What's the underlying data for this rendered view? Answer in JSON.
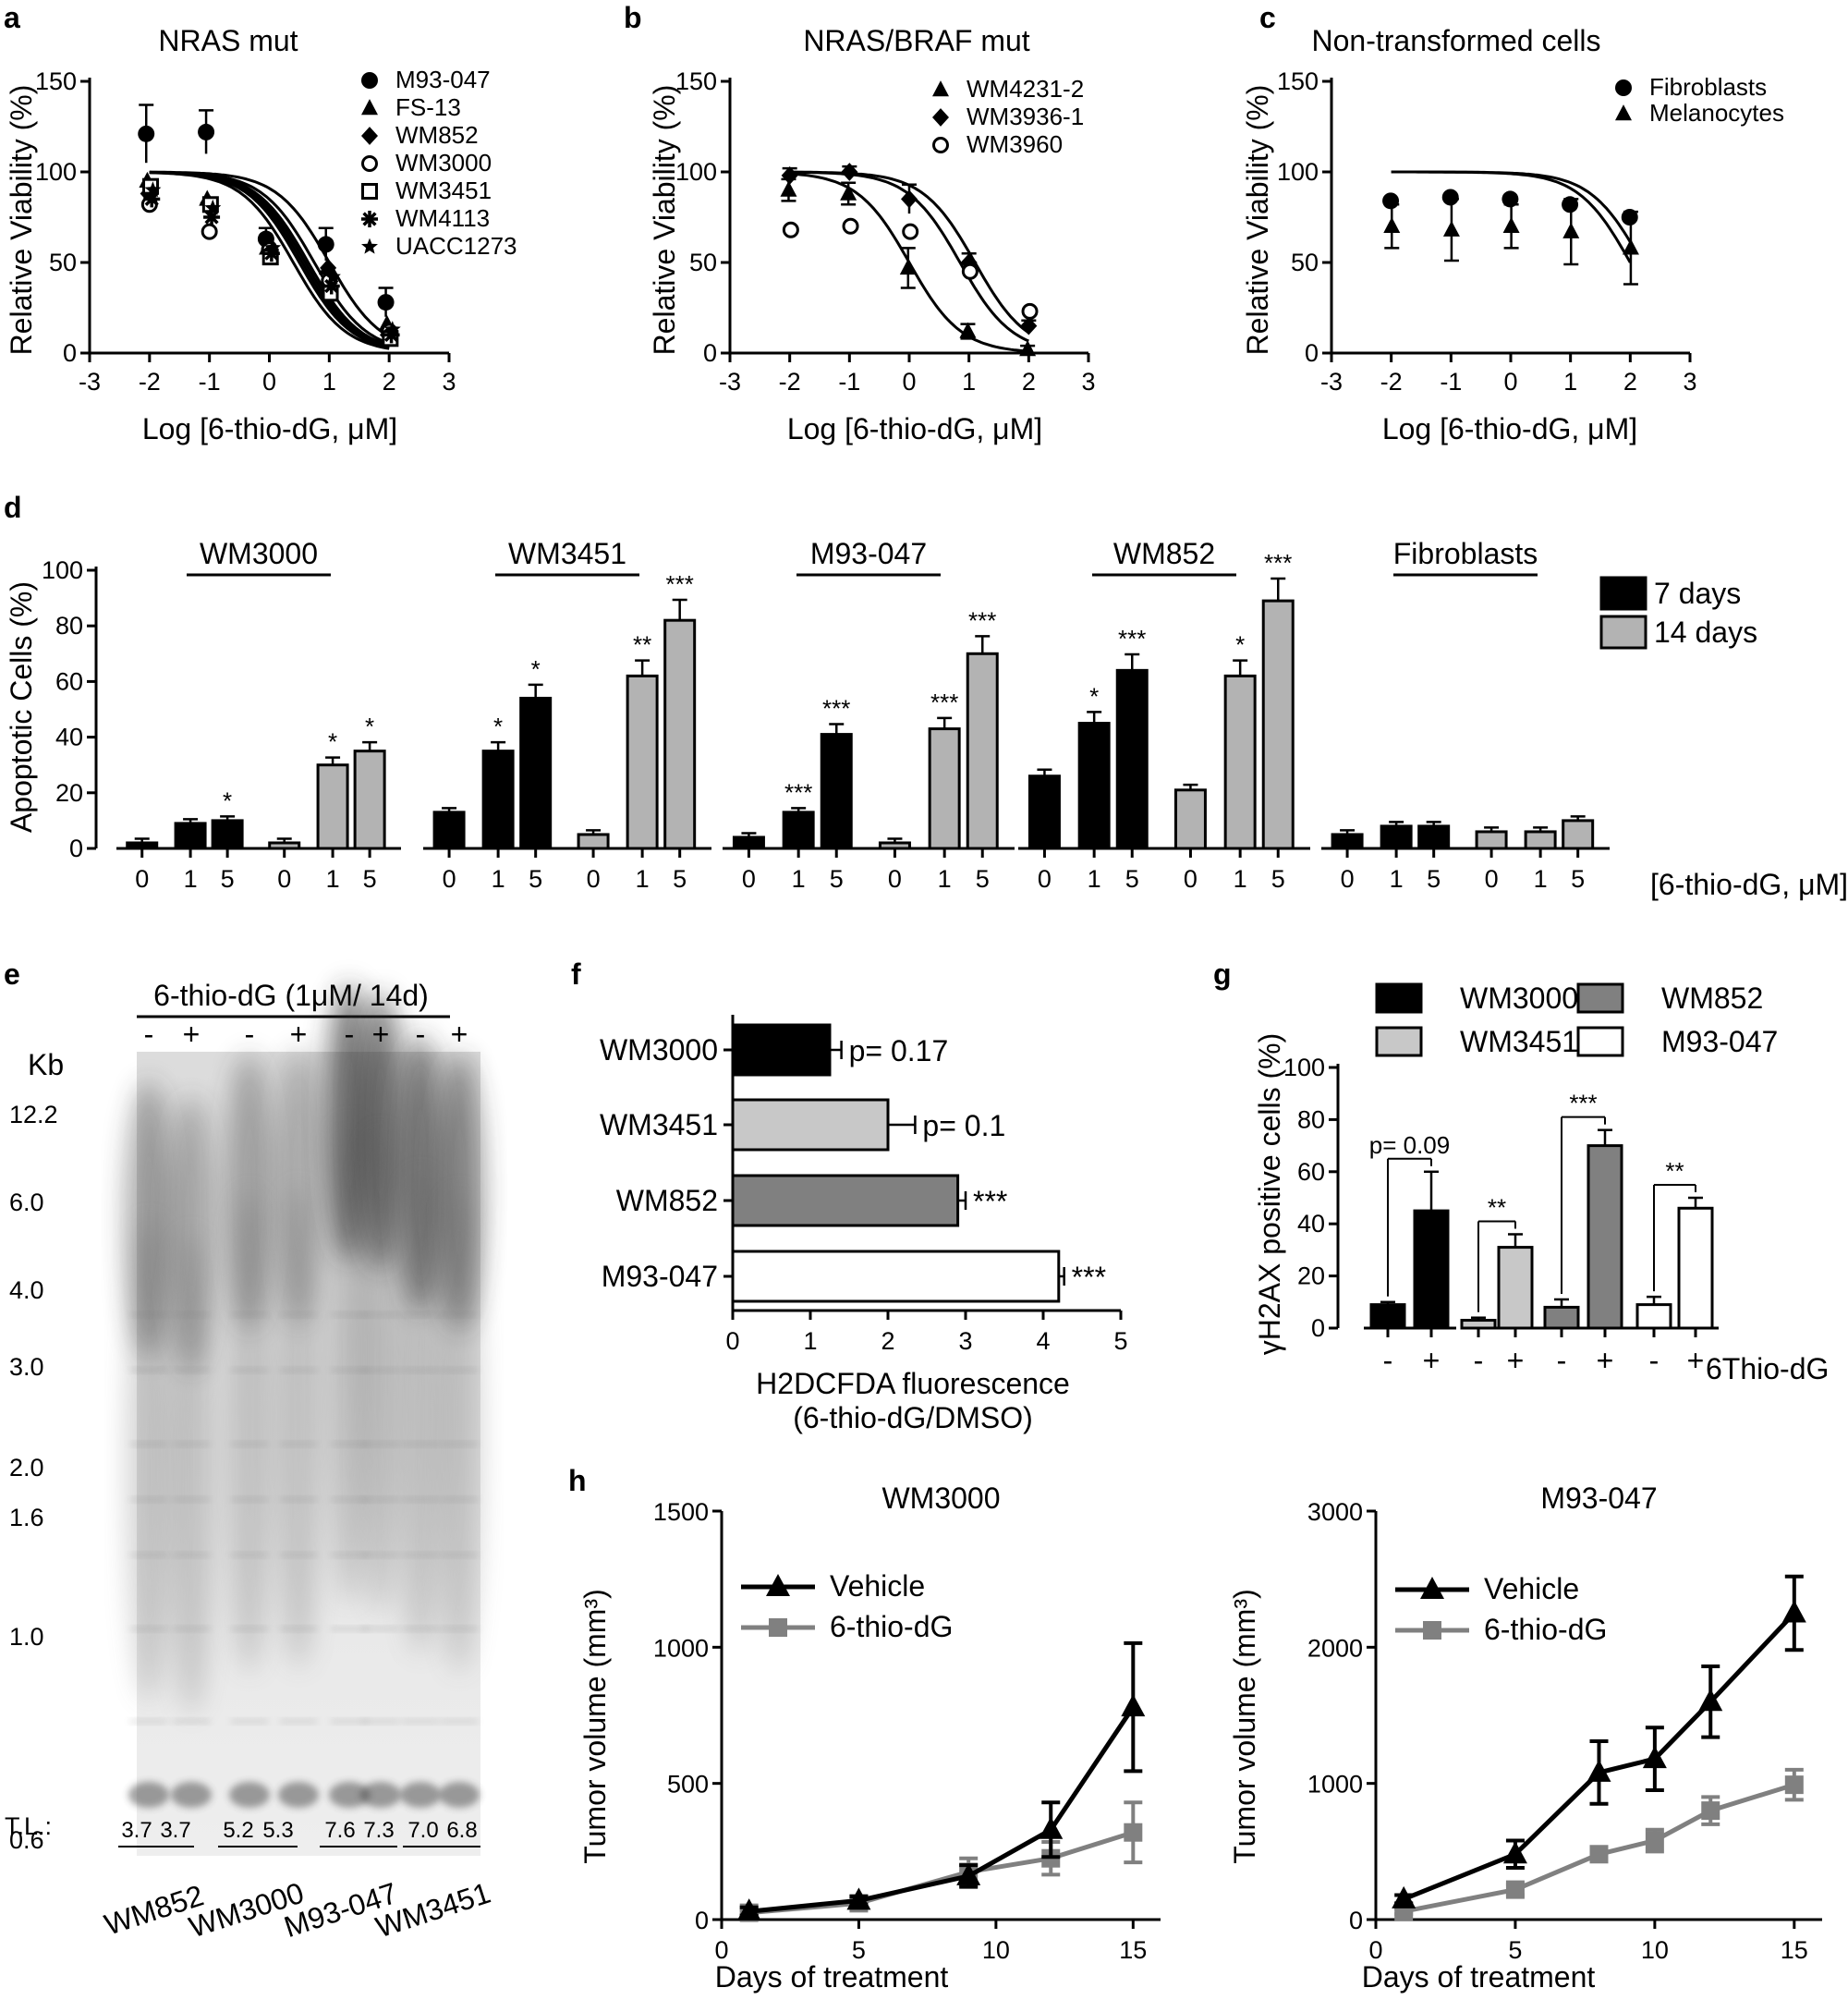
{
  "panels": {
    "a": {
      "label": "a",
      "title": "NRAS mut",
      "ylabel": "Relative Viability (%)",
      "xlabel": "Log [6-thio-dG, μM]"
    },
    "b": {
      "label": "b",
      "title": "NRAS/BRAF mut",
      "ylabel": "Relative Viability (%)",
      "xlabel": "Log [6-thio-dG, μM]"
    },
    "c": {
      "label": "c",
      "title": "Non-transformed cells",
      "ylabel": "Relative Viability (%)",
      "xlabel": "Log [6-thio-dG, μM]"
    },
    "d": {
      "label": "d",
      "ylabel": "Apoptotic Cells (%)",
      "xlabel": "[6-thio-dG, μM]"
    },
    "e": {
      "label": "e",
      "header": "6-thio-dG (1μM/ 14d)",
      "kb": "Kb",
      "tl": "T.L.:"
    },
    "f": {
      "label": "f",
      "xlabel1": "H2DCFDA fluorescence",
      "xlabel2": "(6-thio-dG/DMSO)"
    },
    "g": {
      "label": "g",
      "ylabel": "γH2AX positive cells (%)",
      "xlabel": "6Thio-dG"
    },
    "h": {
      "label": "h",
      "xlabel": "Days of treatment",
      "ylabel": "Tumor volume (mm³)"
    }
  },
  "chart_data": [
    {
      "id": "a",
      "type": "scatter",
      "title": "NRAS mut",
      "xlabel": "Log [6-thio-dG, μM]",
      "ylabel": "Relative Viability (%)",
      "xlim": [
        -3,
        3
      ],
      "ylim": [
        0,
        150
      ],
      "xticks": [
        -3,
        -2,
        -1,
        0,
        1,
        2,
        3
      ],
      "yticks": [
        0,
        50,
        100,
        150
      ],
      "x": [
        -2,
        -1,
        0,
        1,
        2
      ],
      "series": [
        {
          "name": "M93-047",
          "marker": "filled-circle",
          "values": [
            121,
            122,
            63,
            60,
            28
          ],
          "ic50": 1.0
        },
        {
          "name": "FS-13",
          "marker": "filled-triangle",
          "values": [
            95,
            85,
            58,
            47,
            16
          ],
          "ic50": 0.75
        },
        {
          "name": "WM852",
          "marker": "filled-diamond",
          "values": [
            88,
            83,
            60,
            47,
            10
          ],
          "ic50": 0.6
        },
        {
          "name": "WM3000",
          "marker": "open-circle",
          "values": [
            82,
            67,
            57,
            40,
            12
          ],
          "ic50": 0.5
        },
        {
          "name": "WM3451",
          "marker": "open-square",
          "values": [
            92,
            82,
            53,
            33,
            8
          ],
          "ic50": 0.4
        },
        {
          "name": "WM4113",
          "marker": "asterisk",
          "values": [
            85,
            75,
            55,
            37,
            10
          ],
          "ic50": 0.55
        },
        {
          "name": "UACC1273",
          "marker": "star",
          "values": [
            90,
            80,
            58,
            42,
            13
          ],
          "ic50": 0.65
        }
      ]
    },
    {
      "id": "b",
      "type": "scatter",
      "title": "NRAS/BRAF mut",
      "xlabel": "Log [6-thio-dG, μM]",
      "ylabel": "Relative Viability (%)",
      "xlim": [
        -3,
        3
      ],
      "ylim": [
        0,
        150
      ],
      "xticks": [
        -3,
        -2,
        -1,
        0,
        1,
        2,
        3
      ],
      "yticks": [
        0,
        50,
        100,
        150
      ],
      "x": [
        -2,
        -1,
        0,
        1,
        2
      ],
      "series": [
        {
          "name": "WM4231-2",
          "marker": "filled-triangle",
          "values": [
            90,
            88,
            47,
            12,
            2
          ],
          "ic50": 0.0
        },
        {
          "name": "WM3936-1",
          "marker": "filled-diamond",
          "values": [
            98,
            100,
            85,
            50,
            15
          ],
          "ic50": 0.85
        },
        {
          "name": "WM3960",
          "marker": "open-circle",
          "values": [
            68,
            70,
            67,
            45,
            23
          ],
          "ic50": 1.1
        }
      ]
    },
    {
      "id": "c",
      "type": "scatter",
      "title": "Non-transformed cells",
      "xlabel": "Log [6-thio-dG, μM]",
      "ylabel": "Relative Viability (%)",
      "xlim": [
        -3,
        3
      ],
      "ylim": [
        0,
        150
      ],
      "xticks": [
        -3,
        -2,
        -1,
        0,
        1,
        2,
        3
      ],
      "yticks": [
        0,
        50,
        100,
        150
      ],
      "x": [
        -2,
        -1,
        0,
        1,
        2
      ],
      "series": [
        {
          "name": "Fibroblasts",
          "marker": "filled-circle",
          "values": [
            84,
            86,
            85,
            82,
            75
          ],
          "ic50": 2.2
        },
        {
          "name": "Melanocytes",
          "marker": "filled-triangle",
          "values": [
            70,
            68,
            70,
            67,
            58
          ],
          "ic50": 2.0
        }
      ]
    },
    {
      "id": "d",
      "type": "bar",
      "ylabel": "Apoptotic Cells (%)",
      "xlabel": "[6-thio-dG, μM]",
      "ylim": [
        0,
        100
      ],
      "yticks": [
        0,
        20,
        40,
        60,
        80,
        100
      ],
      "doses": [
        "0",
        "1",
        "5"
      ],
      "legend": [
        {
          "name": "7 days",
          "color": "#000000"
        },
        {
          "name": "14 days",
          "color": "#b3b3b3"
        }
      ],
      "groups": [
        {
          "name": "WM3000",
          "d7": [
            2,
            9,
            10
          ],
          "d7_sig": [
            "",
            "",
            "*"
          ],
          "d14": [
            2,
            30,
            35
          ],
          "d14_sig": [
            "",
            "*",
            "*"
          ]
        },
        {
          "name": "WM3451",
          "d7": [
            13,
            35,
            54
          ],
          "d7_sig": [
            "",
            "*",
            "*"
          ],
          "d14": [
            5,
            62,
            82
          ],
          "d14_sig": [
            "",
            "**",
            "***"
          ]
        },
        {
          "name": "M93-047",
          "d7": [
            4,
            13,
            41
          ],
          "d7_sig": [
            "",
            "***",
            "***"
          ],
          "d14": [
            2,
            43,
            70
          ],
          "d14_sig": [
            "",
            "***",
            "***"
          ]
        },
        {
          "name": "WM852",
          "d7": [
            26,
            45,
            64
          ],
          "d7_sig": [
            "",
            "*",
            "***"
          ],
          "d14": [
            21,
            62,
            89
          ],
          "d14_sig": [
            "",
            "*",
            "***"
          ]
        },
        {
          "name": "Fibroblasts",
          "d7": [
            5,
            8,
            8
          ],
          "d7_sig": [
            "",
            "",
            ""
          ],
          "d14": [
            6,
            6,
            10
          ],
          "d14_sig": [
            "",
            "",
            ""
          ]
        }
      ]
    },
    {
      "id": "e",
      "type": "table",
      "title": "6-thio-dG (1μM/ 14d)",
      "lanes": [
        "-",
        "+",
        "-",
        "+",
        "-",
        "+",
        "-",
        "+"
      ],
      "kb_markers": [
        "12.2",
        "6.0",
        "4.0",
        "3.0",
        "2.0",
        "1.6",
        "1.0",
        "0.6"
      ],
      "tl_label": "T.L.:",
      "tl_values": [
        "3.7",
        "3.7",
        "5.2",
        "5.3",
        "7.6",
        "7.3",
        "7.0",
        "6.8"
      ],
      "cell_lines": [
        "WM852",
        "WM3000",
        "M93-047",
        "WM3451"
      ]
    },
    {
      "id": "f",
      "type": "bar",
      "orientation": "horizontal",
      "xlabel": "H2DCFDA fluorescence (6-thio-dG/DMSO)",
      "xlim": [
        0,
        5
      ],
      "xticks": [
        0,
        1,
        2,
        3,
        4,
        5
      ],
      "categories": [
        "WM3000",
        "WM3451",
        "WM852",
        "M93-047"
      ],
      "values": [
        1.25,
        2.0,
        2.9,
        4.2
      ],
      "errors": [
        0.15,
        0.35,
        0.1,
        0.07
      ],
      "annotations": [
        "p= 0.17",
        "p= 0.1",
        "***",
        "***"
      ],
      "colors": [
        "#000000",
        "#c8c8c8",
        "#808080",
        "#ffffff"
      ]
    },
    {
      "id": "g",
      "type": "bar",
      "ylabel": "γH2AX positive cells (%)",
      "xlabel": "6Thio-dG",
      "ylim": [
        0,
        100
      ],
      "yticks": [
        0,
        20,
        40,
        60,
        80,
        100
      ],
      "legend": [
        {
          "name": "WM3000",
          "color": "#000000"
        },
        {
          "name": "WM852",
          "color": "#808080"
        },
        {
          "name": "WM3451",
          "color": "#c8c8c8"
        },
        {
          "name": "M93-047",
          "color": "#ffffff"
        }
      ],
      "groups": [
        {
          "name": "WM3000",
          "color": "#000000",
          "minus": 9,
          "plus": 45,
          "minus_err": 1,
          "plus_err": 15,
          "sig": "p= 0.09"
        },
        {
          "name": "WM3451",
          "color": "#c8c8c8",
          "minus": 3,
          "plus": 31,
          "minus_err": 1,
          "plus_err": 5,
          "sig": "**"
        },
        {
          "name": "WM852",
          "color": "#808080",
          "minus": 8,
          "plus": 70,
          "minus_err": 3,
          "plus_err": 6,
          "sig": "***"
        },
        {
          "name": "M93-047",
          "color": "#ffffff",
          "minus": 9,
          "plus": 46,
          "minus_err": 3,
          "plus_err": 4,
          "sig": "**"
        }
      ],
      "tick_labels": [
        "-",
        "+"
      ]
    },
    {
      "id": "h1",
      "type": "line",
      "title": "WM3000",
      "xlabel": "Days of treatment",
      "ylabel": "Tumor volume (mm³)",
      "xlim": [
        0,
        16
      ],
      "ylim": [
        0,
        1500
      ],
      "xticks": [
        0,
        5,
        10,
        15
      ],
      "yticks": [
        0,
        500,
        1000,
        1500
      ],
      "series": [
        {
          "name": "Vehicle",
          "color": "#000000",
          "x": [
            1,
            5,
            9,
            12,
            15
          ],
          "values": [
            30,
            70,
            160,
            330,
            780
          ],
          "errors": [
            15,
            15,
            40,
            100,
            235
          ]
        },
        {
          "name": "6-thio-dG",
          "color": "#808080",
          "x": [
            1,
            5,
            9,
            12,
            15
          ],
          "values": [
            25,
            60,
            175,
            225,
            320
          ],
          "errors": [
            10,
            15,
            50,
            60,
            110
          ]
        }
      ]
    },
    {
      "id": "h2",
      "type": "line",
      "title": "M93-047",
      "xlabel": "Days of treatment",
      "ylabel": "Tumor volume (mm³)",
      "xlim": [
        0,
        16
      ],
      "ylim": [
        0,
        3000
      ],
      "xticks": [
        0,
        5,
        10,
        15
      ],
      "yticks": [
        0,
        1000,
        2000,
        3000
      ],
      "series": [
        {
          "name": "Vehicle",
          "color": "#000000",
          "x": [
            1,
            5,
            8,
            10,
            12,
            15
          ],
          "values": [
            150,
            480,
            1080,
            1180,
            1600,
            2250
          ],
          "errors": [
            30,
            100,
            230,
            230,
            260,
            270
          ]
        },
        {
          "name": "6-thio-dG",
          "color": "#808080",
          "x": [
            1,
            5,
            8,
            10,
            12,
            15
          ],
          "values": [
            60,
            220,
            480,
            580,
            800,
            990
          ],
          "errors": [
            20,
            40,
            50,
            80,
            100,
            110
          ]
        }
      ]
    }
  ]
}
